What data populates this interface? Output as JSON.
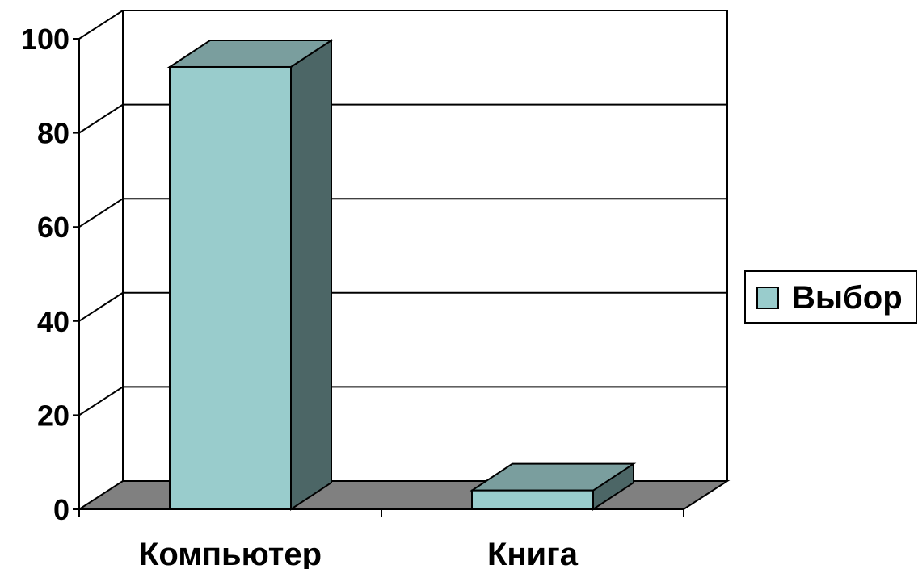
{
  "chart_data": {
    "type": "bar",
    "style": "3d-column",
    "categories": [
      "Компьютер",
      "Книга"
    ],
    "series": [
      {
        "name": "Выбор",
        "values": [
          94,
          4
        ]
      }
    ],
    "y_ticks": [
      "0",
      "20",
      "40",
      "60",
      "80",
      "100"
    ],
    "ylim": [
      0,
      100
    ],
    "grid": true,
    "legend_position": "right",
    "colors": {
      "bar_front": "#99CCCC",
      "bar_top": "#7A9E9E",
      "bar_side": "#4C6666",
      "floor": "#808080",
      "gridline": "#000000"
    }
  }
}
